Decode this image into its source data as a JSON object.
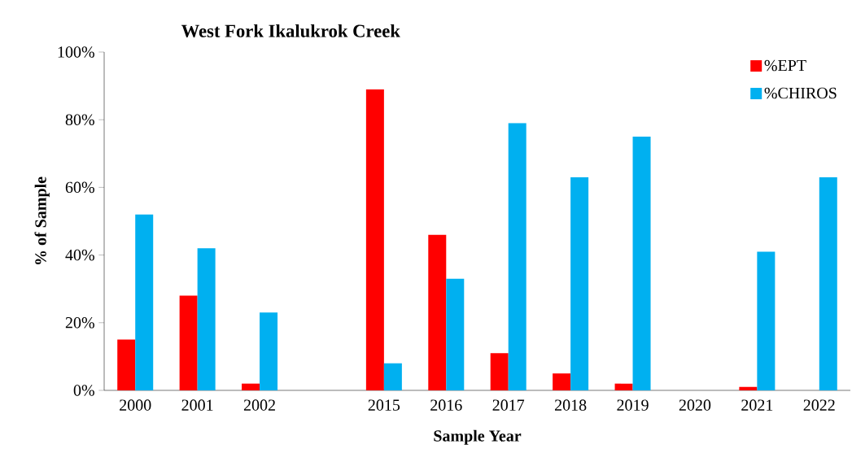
{
  "chart_data": {
    "type": "bar",
    "title": "West Fork Ikalukrok Creek",
    "xlabel": "Sample Year",
    "ylabel": "% of Sample",
    "categories": [
      "2000",
      "2001",
      "2002",
      null,
      "2015",
      "2016",
      "2017",
      "2018",
      "2019",
      "2020",
      "2021",
      "2022"
    ],
    "series": [
      {
        "name": "%EPT",
        "color": "#ff0000",
        "values": [
          15,
          28,
          2,
          null,
          89,
          46,
          11,
          5,
          2,
          null,
          1,
          0
        ]
      },
      {
        "name": "%CHIROS",
        "color": "#00b0f0",
        "values": [
          52,
          42,
          23,
          null,
          8,
          33,
          79,
          63,
          75,
          null,
          41,
          63
        ]
      }
    ],
    "ylim": [
      0,
      100
    ],
    "yticks": [
      {
        "value": 0,
        "label": "0%"
      },
      {
        "value": 20,
        "label": "20%"
      },
      {
        "value": 40,
        "label": "40%"
      },
      {
        "value": 60,
        "label": "60%"
      },
      {
        "value": 80,
        "label": "80%"
      },
      {
        "value": 100,
        "label": "100%"
      }
    ],
    "grid": false,
    "legend": "top right"
  }
}
